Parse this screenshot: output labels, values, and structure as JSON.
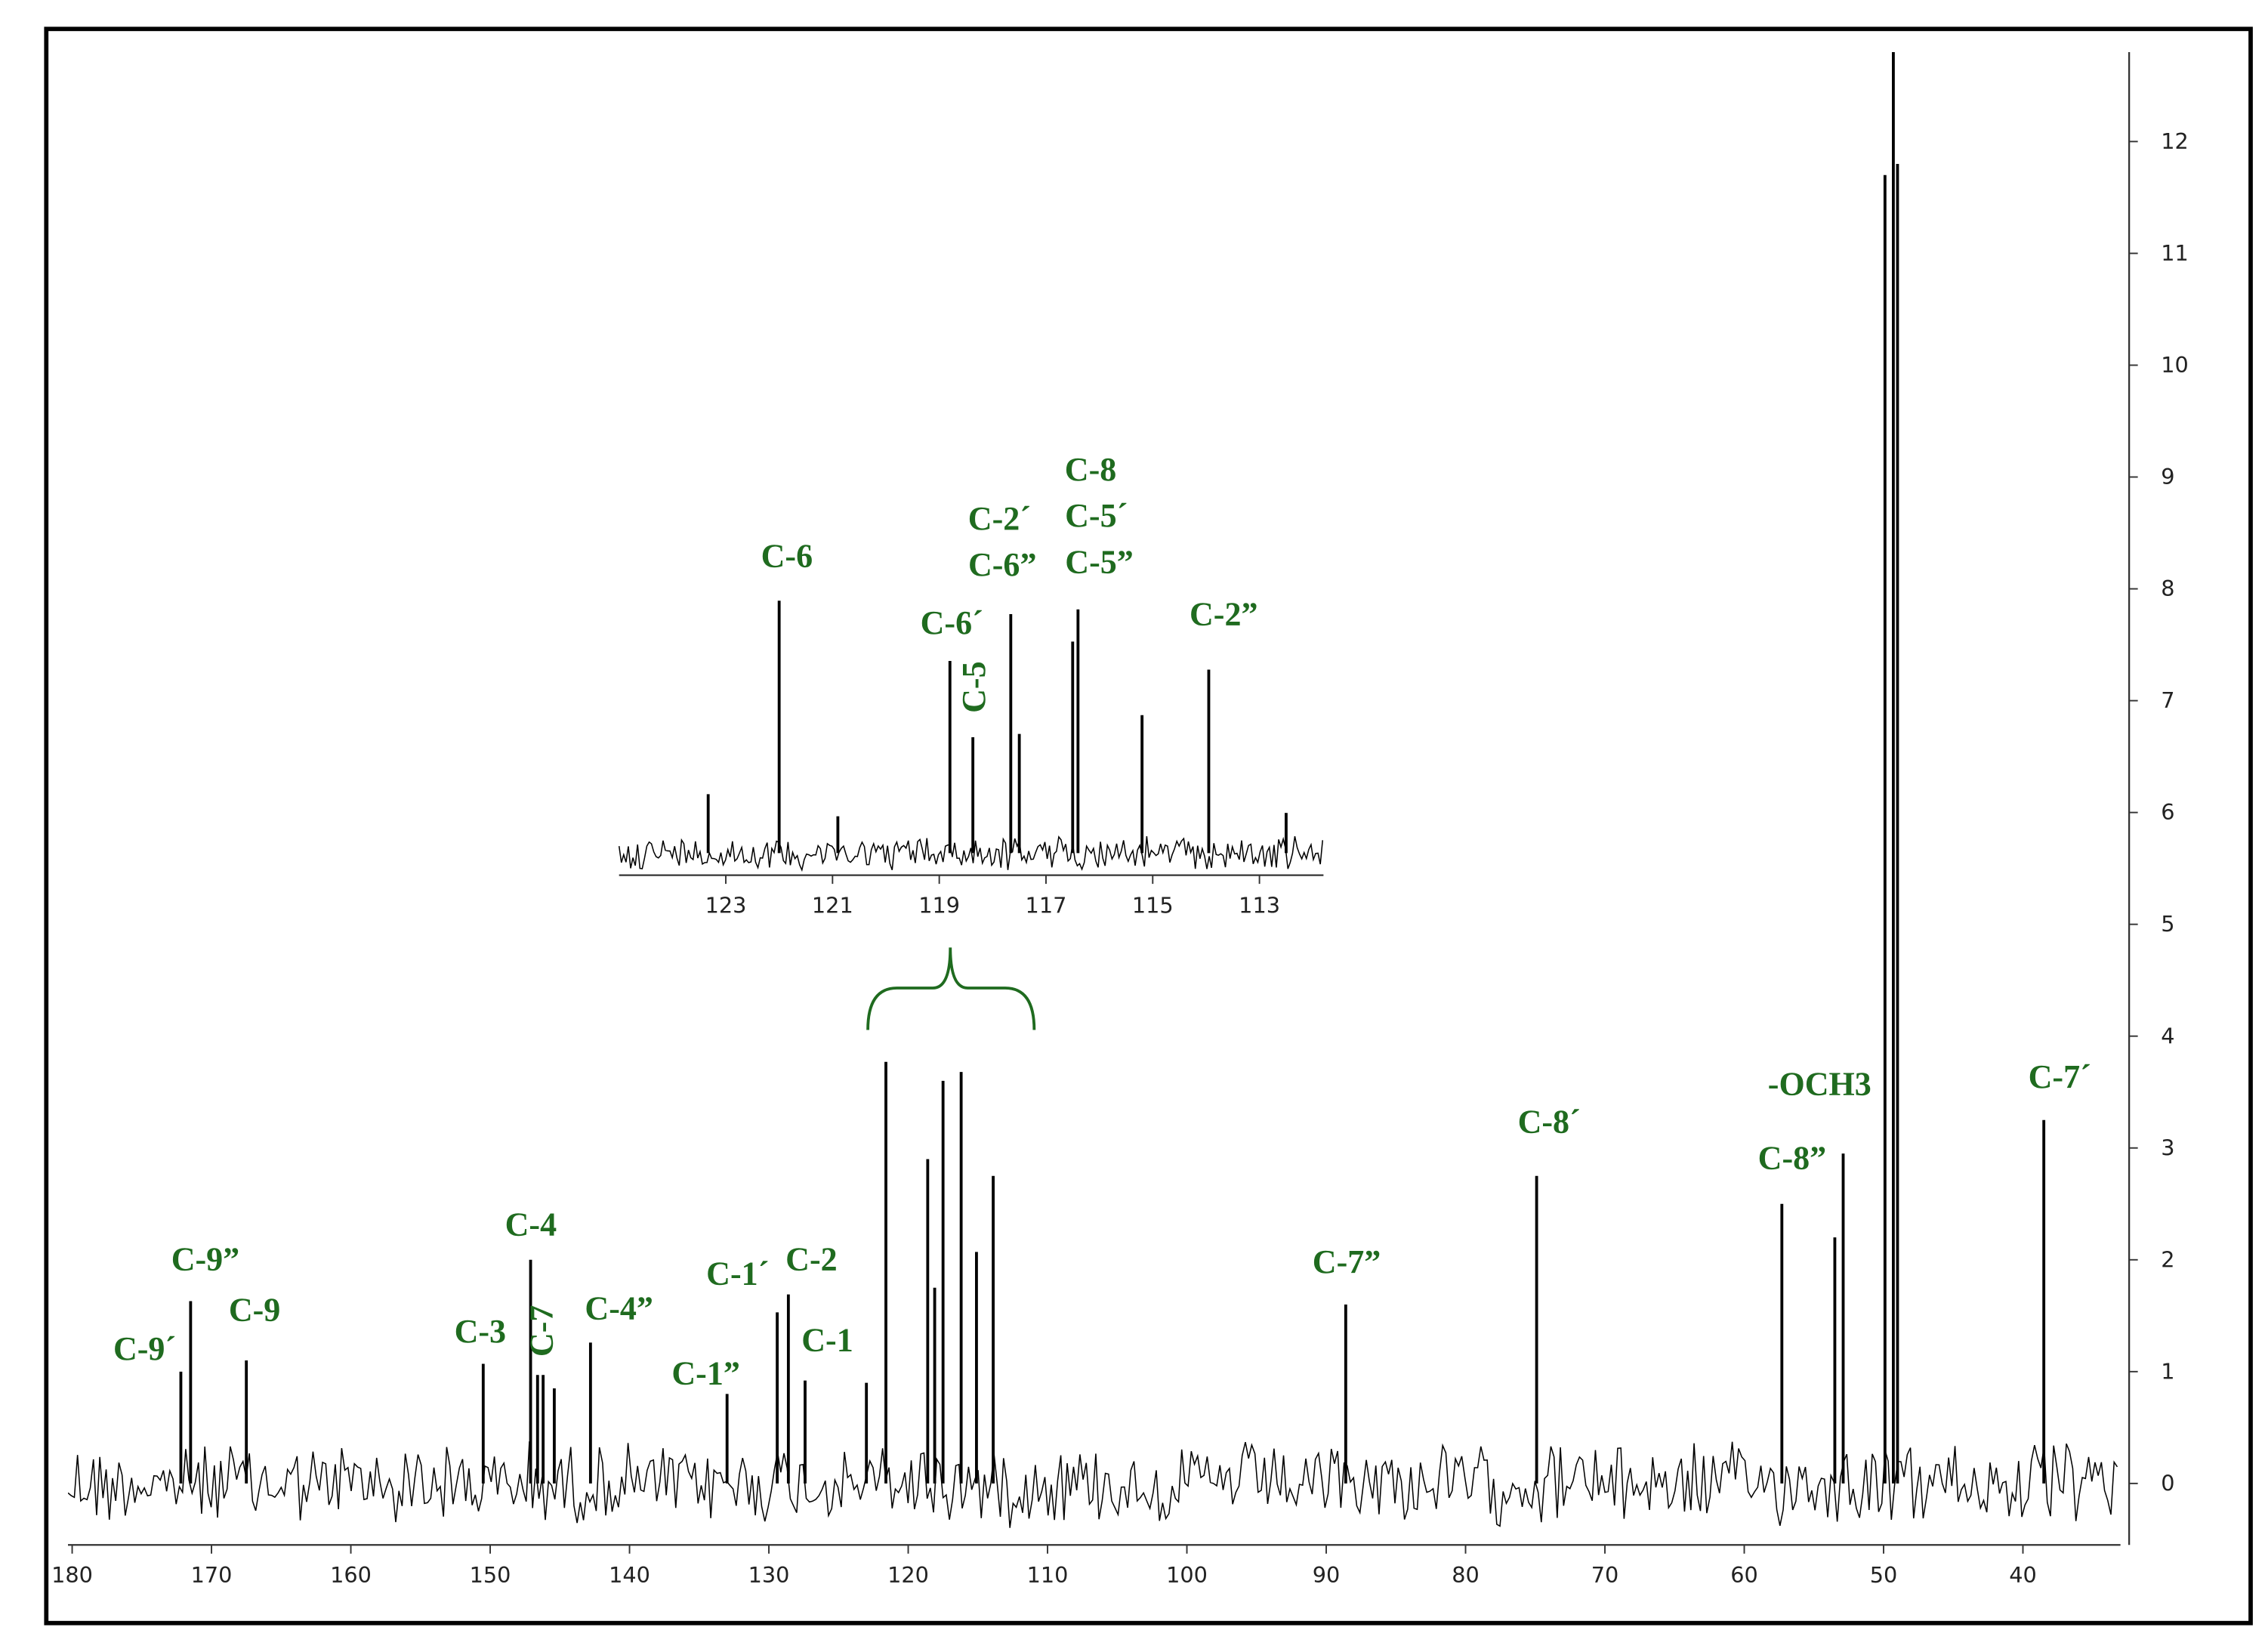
{
  "chart_data": [
    {
      "type": "stick",
      "color": "#000000",
      "annotation_color": "#1f6b1f",
      "x": [
        172.2,
        171.5,
        167.5,
        150.5,
        147.1,
        146.6,
        146.2,
        145.4,
        142.8,
        133.0,
        129.4,
        128.6,
        127.4,
        123.0,
        121.6,
        118.6,
        118.1,
        117.5,
        116.2,
        115.1,
        113.9,
        88.6,
        74.9,
        57.3,
        53.5,
        52.9,
        49.9,
        49.3,
        49.0,
        38.5
      ],
      "values": [
        1.0,
        1.63,
        1.1,
        1.07,
        2.0,
        0.97,
        0.97,
        0.85,
        1.26,
        0.8,
        1.53,
        1.69,
        0.92,
        0.9,
        3.77,
        2.9,
        1.75,
        3.6,
        3.68,
        2.07,
        2.75,
        1.6,
        2.75,
        2.5,
        2.2,
        2.95,
        11.7,
        13.0,
        11.8,
        3.25
      ],
      "xlim": [
        180.3,
        33
      ],
      "ylim": [
        -0.55,
        12.8
      ],
      "xticks": [
        180,
        170,
        160,
        150,
        140,
        130,
        120,
        110,
        100,
        90,
        80,
        70,
        60,
        50,
        40
      ],
      "yticks": [
        0,
        1,
        2,
        3,
        4,
        5,
        6,
        7,
        8,
        9,
        10,
        11,
        12
      ],
      "annotations": [
        "C-9´",
        "C-9”",
        "C-9",
        "C-3",
        "C-4",
        "C-7",
        "C-4”",
        "C-1”",
        "C-1´",
        "C-2",
        "C-1",
        "C-7”",
        "C-8´",
        "C-8”",
        "-OCH3",
        "C-7´"
      ]
    },
    {
      "type": "stick",
      "color": "#000000",
      "annotation_color": "#1f6b1f",
      "x": [
        123.33,
        122.0,
        120.9,
        118.8,
        118.37,
        117.66,
        117.5,
        116.5,
        116.4,
        115.2,
        113.95,
        112.5
      ],
      "values": [
        0.88,
        3.77,
        0.55,
        2.87,
        1.73,
        3.57,
        1.78,
        3.16,
        3.64,
        2.06,
        2.74,
        0.6
      ],
      "xlim": [
        125.0,
        111.8
      ],
      "ylim": [
        -0.33,
        4.1
      ],
      "xticks": [
        123,
        121,
        119,
        117,
        115,
        113
      ],
      "annotations": [
        "C-6",
        "C-6´",
        "C-5",
        "C-2´",
        "C-6”",
        "C-8",
        "C-5´",
        "C-5”",
        "C-2”"
      ]
    }
  ]
}
